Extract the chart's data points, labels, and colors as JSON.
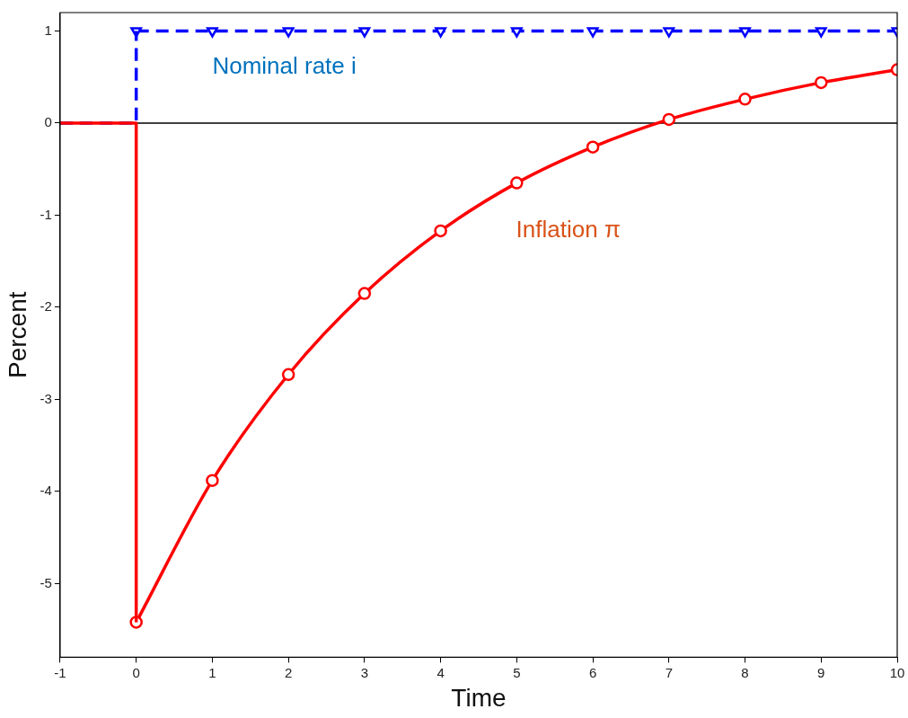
{
  "chart_data": {
    "type": "line",
    "xlabel": "Time",
    "ylabel": "Percent",
    "xlim": [
      -1,
      10
    ],
    "xticks": [
      -1,
      0,
      1,
      2,
      3,
      4,
      5,
      6,
      7,
      8,
      9,
      10
    ],
    "ylim": [
      -5.8,
      1.2
    ],
    "yticks": [
      -5,
      -4,
      -3,
      -2,
      -1,
      0,
      1
    ],
    "grid": false,
    "legend": false,
    "ref_lines": [
      {
        "axis": "y",
        "value": 0,
        "color": "#000000"
      }
    ],
    "series": [
      {
        "color": "#ff0000",
        "line_style": "solid",
        "marker": "none",
        "x": [
          -1,
          0,
          0
        ],
        "values": [
          0,
          0,
          -5.42
        ]
      },
      {
        "name": "Inflation π",
        "color": "#ff0000",
        "line_style": "solid",
        "marker": "circle",
        "x": [
          0,
          1,
          2,
          3,
          4,
          5,
          6,
          7,
          8,
          9,
          10
        ],
        "values": [
          -5.42,
          -3.88,
          -2.73,
          -1.85,
          -1.17,
          -0.65,
          -0.26,
          0.04,
          0.26,
          0.44,
          0.58
        ]
      },
      {
        "color": "#0000ff",
        "line_style": "dashed",
        "marker": "none",
        "x": [
          -1,
          0,
          0
        ],
        "values": [
          0,
          0,
          1
        ]
      },
      {
        "name": "Nominal rate i",
        "color": "#0000ff",
        "line_style": "dashed",
        "marker": "triangle",
        "x": [
          0,
          1,
          2,
          3,
          4,
          5,
          6,
          7,
          8,
          9,
          10
        ],
        "values": [
          1,
          1,
          1,
          1,
          1,
          1,
          1,
          1,
          1,
          1,
          1
        ]
      }
    ]
  }
}
